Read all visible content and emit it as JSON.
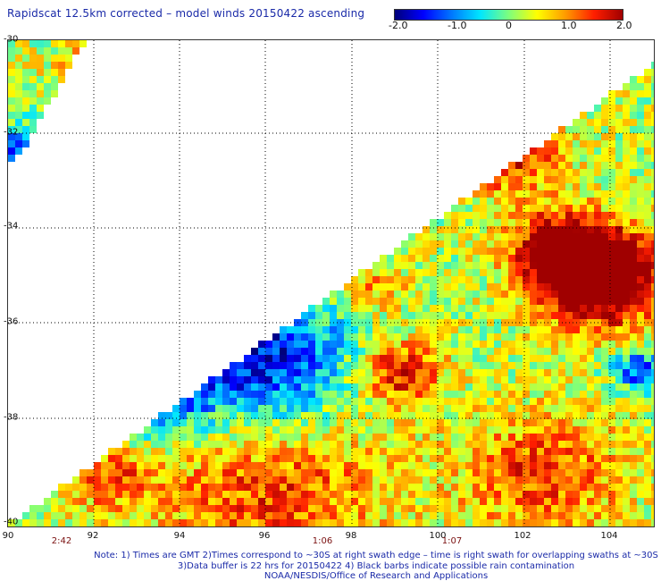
{
  "title": "Rapidscat 12.5km corrected – model winds 20150422 ascending",
  "colorbar": {
    "ticks": [
      "-2.0",
      "-1.0",
      "0",
      "1.0",
      "2.0"
    ],
    "colors": [
      "#00007a",
      "#0000ff",
      "#0078ff",
      "#00e6ff",
      "#7dff7d",
      "#ffff00",
      "#ff9a00",
      "#ff1e00",
      "#a00000"
    ]
  },
  "axes": {
    "y_ticks": [
      "-30",
      "-32",
      "-34",
      "-36",
      "-38",
      "-40"
    ],
    "x_ticks": [
      "90",
      "92",
      "94",
      "96",
      "98",
      "100",
      "102",
      "104"
    ],
    "time_labels": [
      "2:42",
      "1:06",
      "1:07"
    ]
  },
  "chart_data": {
    "type": "heatmap",
    "title": "Rapidscat 12.5km corrected – model winds 20150422 ascending",
    "x_range_lon": [
      90,
      105
    ],
    "y_range_lat": [
      -30,
      -40
    ],
    "value_range": [
      -2.0,
      2.0
    ],
    "grid": true,
    "swath_times": [
      {
        "lon": 92,
        "time": "2:42"
      },
      {
        "lon": 97.5,
        "time": "1:06"
      },
      {
        "lon": 99.5,
        "time": "1:07"
      }
    ]
  },
  "notes": [
    "Note: 1) Times are GMT 2)Times correspond to ~30S at right swath edge – time is right swath for overlapping swaths at ~30S",
    "3)Data buffer is 22 hrs for 20150422 4) Black barbs indicate possible rain contamination",
    "NOAA/NESDIS/Office of Research and Applications"
  ]
}
